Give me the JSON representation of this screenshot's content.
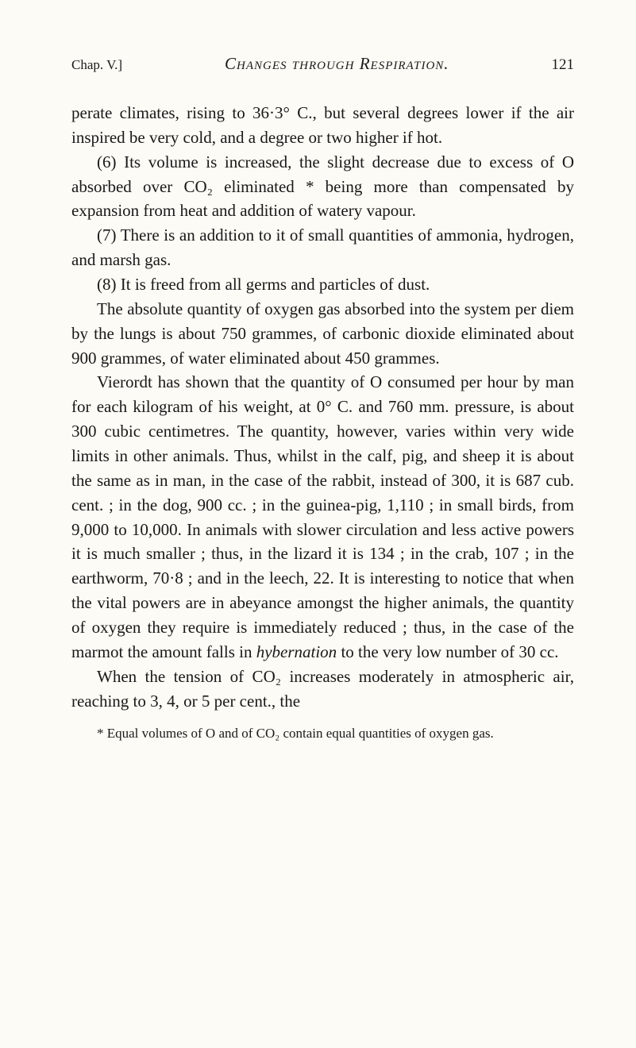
{
  "header": {
    "chapter": "Chap. V.]",
    "title_part1": "Changes through Respiration.",
    "page_num": "121"
  },
  "paragraphs": {
    "p1": "perate climates, rising to 36·3° C., but several degrees lower if the air inspired be very cold, and a degree or two higher if hot.",
    "p2": "(6) Its volume is increased, the slight decrease due to excess of O absorbed over CO₂ eliminated * being more than compensated by expansion from heat and addition of watery vapour.",
    "p3": "(7) There is an addition to it of small quantities of ammonia, hydrogen, and marsh gas.",
    "p4": "(8) It is freed from all germs and particles of dust.",
    "p5": "The absolute quantity of oxygen gas absorbed into the system per diem by the lungs is about 750 grammes, of carbonic dioxide eliminated about 900 grammes, of water eliminated about 450 grammes.",
    "p6_a": "Vierordt has shown that the quantity of O consumed per hour by man for each kilogram of his weight, at 0° C. and 760 mm. pressure, is about 300 cubic centimetres. The quantity, however, varies within very wide limits in other animals. Thus, whilst in the calf, pig, and sheep it is about the same as in man, in the case of the rabbit, instead of 300, it is 687 cub. cent. ; in the dog, 900 cc. ; in the guinea-pig, 1,110 ; in small birds, from 9,000 to 10,000. In animals with slower circulation and less active powers it is much smaller ; thus, in the lizard it is 134 ; in the crab, 107 ; in the earthworm, 70·8 ; and in the leech, 22. It is interesting to notice that when the vital powers are in abeyance amongst the higher animals, the quantity of oxygen they require is immediately reduced ; thus, in the case of the marmot the amount falls in ",
    "p6_hybernation": "hybernation",
    "p6_b": " to the very low number of 30 cc.",
    "p7": "When the tension of CO₂ increases moderately in atmospheric air, reaching to 3, 4, or 5 per cent., the"
  },
  "footnote": "* Equal volumes of O and of CO₂ contain equal quantities of oxygen gas."
}
